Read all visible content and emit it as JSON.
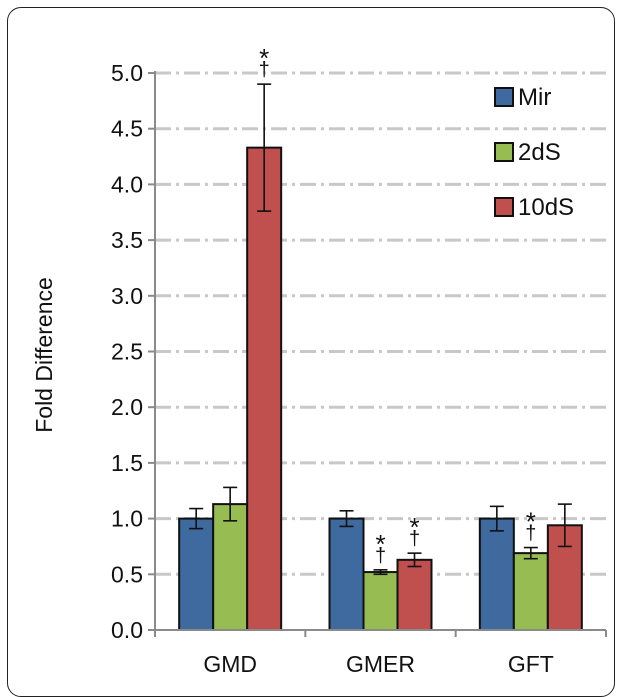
{
  "chart_data": {
    "type": "bar",
    "title": "",
    "xlabel": "",
    "ylabel": "Fold Difference",
    "ylim": [
      0,
      5.0
    ],
    "yticks": [
      "0.0",
      "0.5",
      "1.0",
      "1.5",
      "2.0",
      "2.5",
      "3.0",
      "3.5",
      "4.0",
      "4.5",
      "5.0"
    ],
    "grid": true,
    "legend_position": "top-right",
    "categories": [
      "GMD",
      "GMER",
      "GFT"
    ],
    "series": [
      {
        "name": "Mir",
        "color": "#3e6aa0",
        "values": [
          1.0,
          1.0,
          1.0
        ],
        "errors": [
          0.09,
          0.07,
          0.11
        ],
        "annotations": [
          [],
          [],
          []
        ]
      },
      {
        "name": "2dS",
        "color": "#97bd52",
        "values": [
          1.13,
          0.52,
          0.69
        ],
        "errors": [
          0.15,
          0.02,
          0.05
        ],
        "annotations": [
          [],
          [
            "*",
            "†"
          ],
          [
            "*",
            "†"
          ]
        ]
      },
      {
        "name": "10dS",
        "color": "#c0504d",
        "values": [
          4.33,
          0.63,
          0.94
        ],
        "errors": [
          0.57,
          0.06,
          0.19
        ],
        "annotations": [
          [
            "*",
            "†"
          ],
          [
            "*",
            "†"
          ],
          []
        ]
      }
    ]
  }
}
